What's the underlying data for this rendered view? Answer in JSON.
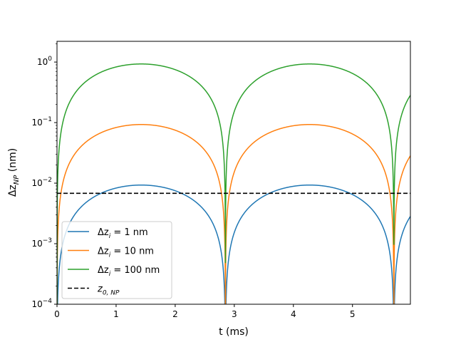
{
  "chart_data": {
    "type": "line",
    "title": "",
    "xlabel": "t (ms)",
    "ylabel_base": "Δz",
    "ylabel_sub": "NP",
    "ylabel_unit": " (nm)",
    "xlim": [
      0,
      5.98
    ],
    "ylim": [
      0.0001,
      2.2
    ],
    "yscale": "log",
    "grid": false,
    "legend_position": "lower-left",
    "x_ticks": [
      {
        "value": 0,
        "label": "0"
      },
      {
        "value": 1,
        "label": "1"
      },
      {
        "value": 2,
        "label": "2"
      },
      {
        "value": 3,
        "label": "3"
      },
      {
        "value": 4,
        "label": "4"
      },
      {
        "value": 5,
        "label": "5"
      }
    ],
    "y_ticks": [
      {
        "value": 0.0001,
        "base": "10",
        "exp": "−4"
      },
      {
        "value": 0.001,
        "base": "10",
        "exp": "−3"
      },
      {
        "value": 0.01,
        "base": "10",
        "exp": "−2"
      },
      {
        "value": 0.1,
        "base": "10",
        "exp": "−1"
      },
      {
        "value": 1,
        "base": "10",
        "exp": "0"
      }
    ],
    "period_ms": 2.85,
    "series": [
      {
        "label_base": "Δz",
        "label_sub": "i",
        "label_rest": " = 1 nm",
        "amplitude": 0.0093,
        "color": "#1f77b4",
        "style": "solid"
      },
      {
        "label_base": "Δz",
        "label_sub": "i",
        "label_rest": " = 10 nm",
        "amplitude": 0.093,
        "color": "#ff7f0e",
        "style": "solid"
      },
      {
        "label_base": "Δz",
        "label_sub": "i",
        "label_rest": " = 100 nm",
        "amplitude": 0.93,
        "color": "#2ca02c",
        "style": "solid"
      }
    ],
    "reference_line": {
      "label_base": "z",
      "label_sub": "0, NP",
      "y": 0.0068,
      "color": "#000000",
      "style": "dashed"
    }
  }
}
